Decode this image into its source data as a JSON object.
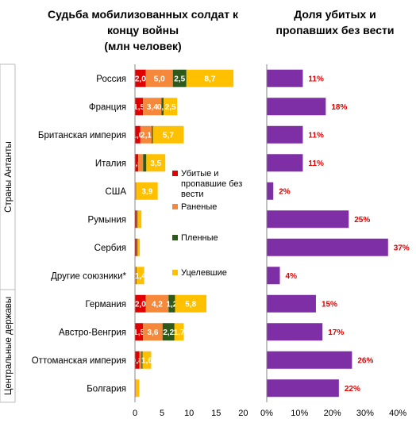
{
  "chart_data": [
    {
      "type": "bar",
      "orientation": "horizontal",
      "stacked": true,
      "title_lines": [
        "Судьба мобилизованных солдат к",
        "концу войны",
        "(млн человек)"
      ],
      "groups": [
        {
          "label": "Страны Антанты",
          "categories": [
            "Россия",
            "Франция",
            "Британская империя",
            "Италия",
            "США",
            "Румыния",
            "Сербия",
            "Другие союзники*"
          ]
        },
        {
          "label": "Центральные державы",
          "categories": [
            "Германия",
            "Австро-Венгрия",
            "Оттоманская империя",
            "Болгария"
          ]
        }
      ],
      "categories": [
        "Россия",
        "Франция",
        "Британская империя",
        "Италия",
        "США",
        "Румыния",
        "Сербия",
        "Другие союзники*",
        "Германия",
        "Австро-Венгрия",
        "Оттоманская империя",
        "Болгария"
      ],
      "series": [
        {
          "name": "Убитые и пропавшие без вести",
          "color": "#e00000",
          "values": [
            2.0,
            1.5,
            1.0,
            0.6,
            0.1,
            0.3,
            0.3,
            0.1,
            2.0,
            1.5,
            0.8,
            0.1
          ]
        },
        {
          "name": "Раненые",
          "color": "#f5883b",
          "values": [
            5.0,
            3.4,
            2.1,
            0.9,
            0.2,
            0.1,
            0.1,
            0.1,
            4.2,
            3.6,
            0.4,
            0.1
          ]
        },
        {
          "name": "Пленные",
          "color": "#2d5a1b",
          "values": [
            2.5,
            0.4,
            0.2,
            0.6,
            0.0,
            0.1,
            0.1,
            0.1,
            1.2,
            2.2,
            0.2,
            0.0
          ]
        },
        {
          "name": "Уцелевшие",
          "color": "#ffc000",
          "values": [
            8.7,
            2.5,
            5.7,
            3.5,
            3.9,
            0.7,
            0.4,
            1.4,
            5.8,
            1.7,
            1.6,
            0.6
          ]
        }
      ],
      "value_labels": [
        [
          "2,0",
          "5,0",
          "2,5",
          "8,7"
        ],
        [
          "1,5",
          "3,4",
          "0,4",
          "2,5"
        ],
        [
          "1,0",
          "2,1",
          "",
          "5,7"
        ],
        [
          "0,6",
          "",
          "",
          "3,5"
        ],
        [
          "",
          "",
          "",
          "3,9"
        ],
        [
          "",
          "",
          "",
          ""
        ],
        [
          "",
          "",
          "",
          ""
        ],
        [
          "",
          "",
          "",
          "1,4"
        ],
        [
          "2,0",
          "4,2",
          "1,2",
          "5,8"
        ],
        [
          "1,5",
          "3,6",
          "2,2",
          "1,7"
        ],
        [
          "0,8",
          "",
          "",
          "1,6"
        ],
        [
          "",
          "",
          "",
          ""
        ]
      ],
      "xlim": [
        0,
        20
      ],
      "xticks": [
        "0",
        "5",
        "10",
        "15",
        "20"
      ]
    },
    {
      "type": "bar",
      "orientation": "horizontal",
      "title_lines": [
        "Доля убитых и",
        "пропавших без вести"
      ],
      "categories": [
        "Россия",
        "Франция",
        "Британская империя",
        "Италия",
        "США",
        "Румыния",
        "Сербия",
        "Другие союзники*",
        "Германия",
        "Австро-Венгрия",
        "Оттоманская империя",
        "Болгария"
      ],
      "values": [
        11,
        18,
        11,
        11,
        2,
        25,
        37,
        4,
        15,
        17,
        26,
        22
      ],
      "value_labels": [
        "11%",
        "18%",
        "11%",
        "11%",
        "2%",
        "25%",
        "37%",
        "4%",
        "15%",
        "17%",
        "26%",
        "22%"
      ],
      "color": "#7f2fa5",
      "label_color": "#e00000",
      "xlim": [
        0,
        40
      ],
      "xticks": [
        "0%",
        "10%",
        "20%",
        "30%",
        "40%"
      ]
    }
  ]
}
